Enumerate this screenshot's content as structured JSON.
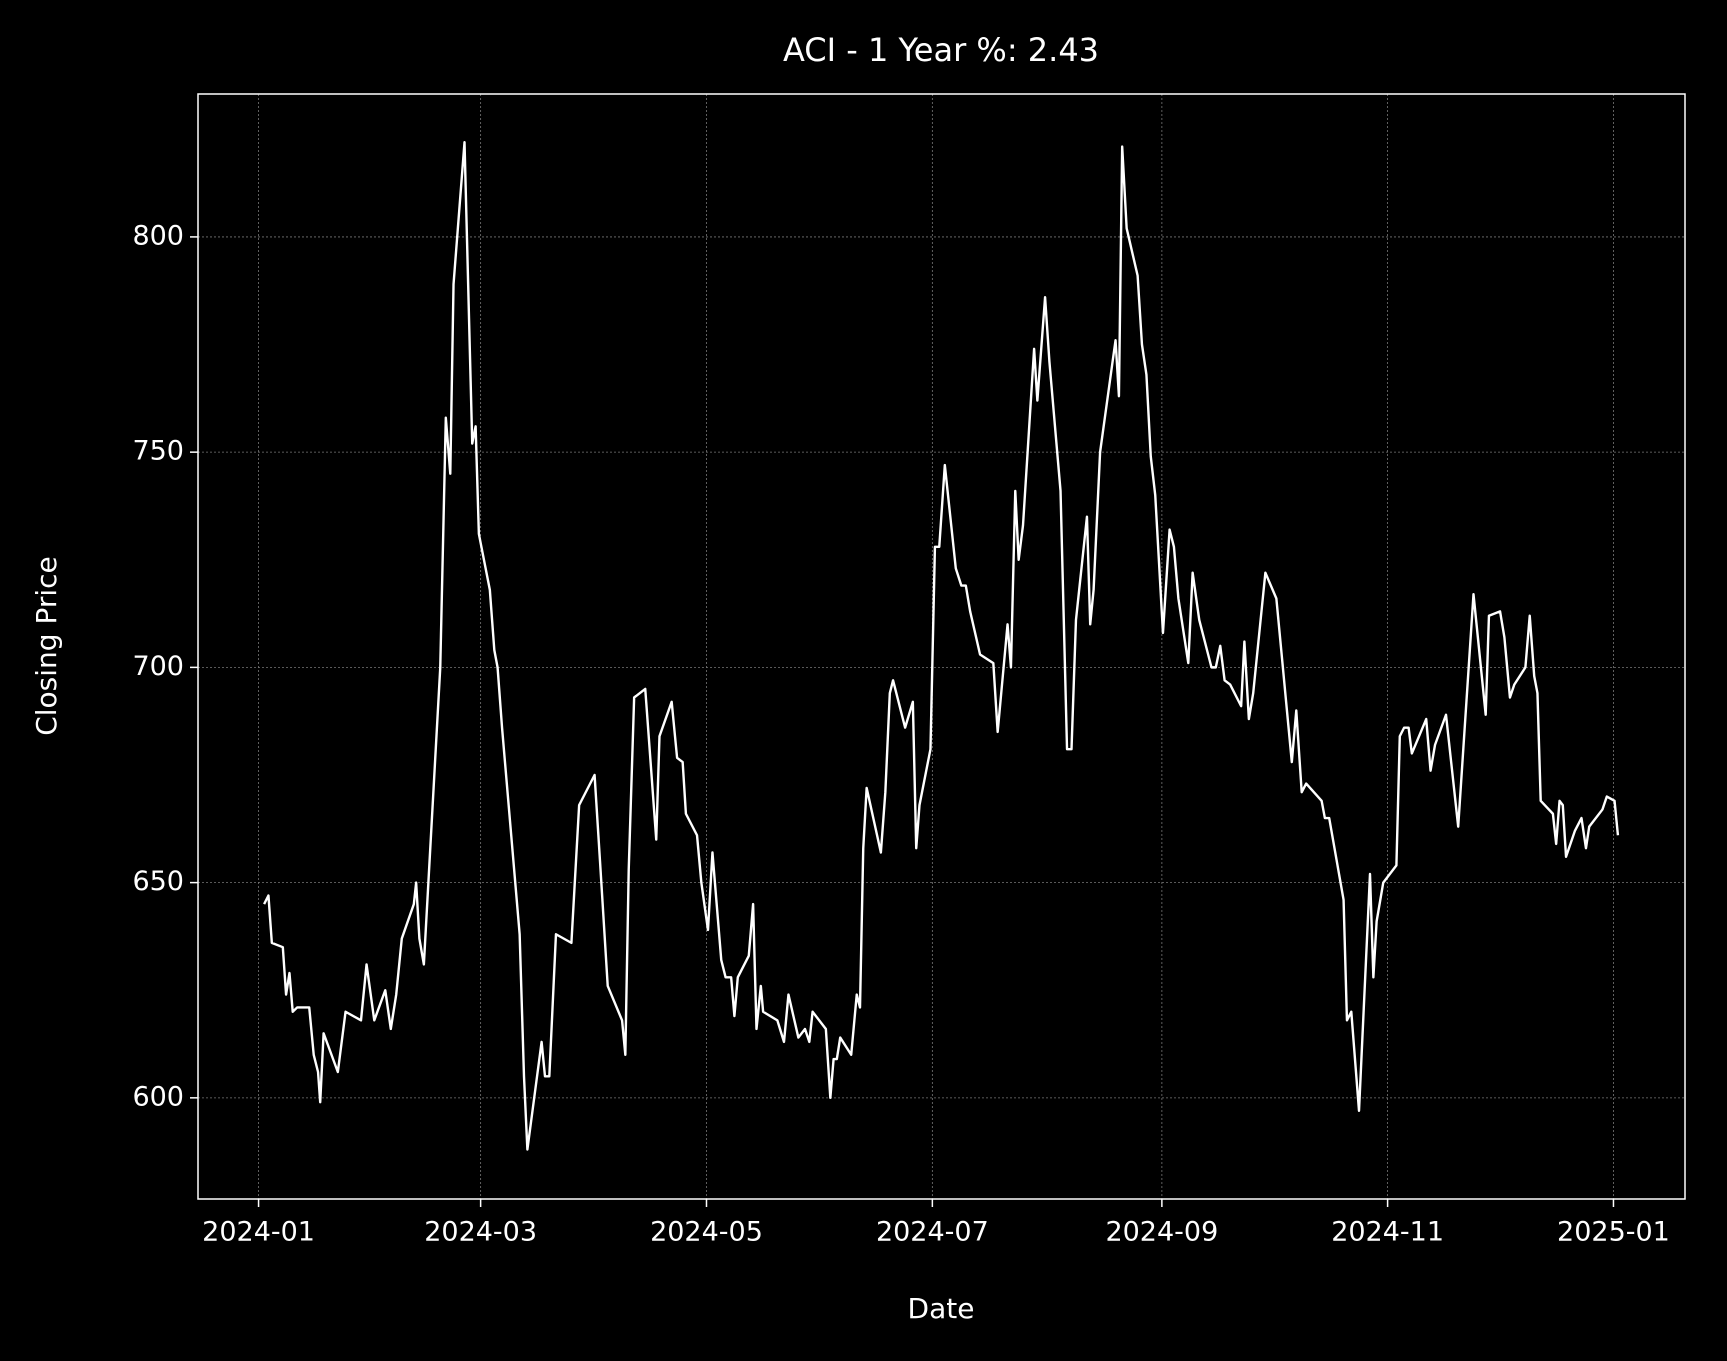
{
  "chart_data": {
    "type": "line",
    "title": "ACI - 1 Year %: 2.43",
    "xlabel": "Date",
    "ylabel": "Closing Price",
    "color": "#ffffff",
    "grid": true,
    "xlim": [
      2023.9553,
      2025.0528
    ],
    "ylim": [
      576.5,
      833.2
    ],
    "xticks": [
      {
        "value": 2024.0,
        "label": "2024-01"
      },
      {
        "value": 2024.1639,
        "label": "2024-03"
      },
      {
        "value": 2024.3306,
        "label": "2024-05"
      },
      {
        "value": 2024.4973,
        "label": "2024-07"
      },
      {
        "value": 2024.6667,
        "label": "2024-09"
      },
      {
        "value": 2024.8333,
        "label": "2024-11"
      },
      {
        "value": 2025.0,
        "label": "2025-01"
      }
    ],
    "yticks": [
      600,
      650,
      700,
      750,
      800
    ],
    "x": [
      2024.0041,
      2024.0073,
      2024.0098,
      2024.0179,
      2024.0203,
      2024.0228,
      2024.0252,
      2024.0285,
      2024.0374,
      2024.0407,
      2024.0439,
      2024.0455,
      2024.048,
      2024.0585,
      2024.0642,
      2024.0756,
      2024.0797,
      2024.0854,
      2024.0935,
      2024.0976,
      2024.1016,
      2024.1057,
      2024.1146,
      2024.1163,
      2024.1187,
      2024.122,
      2024.1341,
      2024.1382,
      2024.1415,
      2024.1439,
      2024.152,
      2024.1577,
      2024.1602,
      2024.1626,
      2024.1707,
      2024.174,
      2024.1764,
      2024.1797,
      2024.1927,
      2024.1959,
      2024.1984,
      2024.2089,
      2024.2114,
      2024.2146,
      2024.2195,
      2024.2309,
      2024.2366,
      2024.248,
      2024.252,
      2024.2577,
      2024.2683,
      2024.2707,
      2024.2732,
      2024.2772,
      2024.2854,
      2024.2935,
      2024.2959,
      2024.3049,
      2024.3089,
      2024.313,
      2024.3154,
      2024.3236,
      2024.3268,
      2024.3317,
      2024.335,
      2024.3415,
      2024.3447,
      2024.3488,
      2024.3512,
      2024.3537,
      2024.3618,
      2024.365,
      2024.3675,
      2024.3707,
      2024.3724,
      2024.3829,
      2024.3878,
      2024.3911,
      2024.3984,
      2024.4033,
      2024.4065,
      2024.4089,
      2024.4187,
      2024.422,
      2024.4244,
      2024.4268,
      2024.4293,
      2024.4374,
      2024.4415,
      2024.4439,
      2024.4463,
      2024.4488,
      2024.4593,
      2024.4626,
      2024.4659,
      2024.4683,
      2024.4772,
      2024.4829,
      2024.4854,
      2024.4878,
      2024.4959,
      2024.4992,
      2024.5024,
      2024.5065,
      2024.5146,
      2024.5187,
      2024.522,
      2024.5252,
      2024.5325,
      2024.5423,
      2024.5455,
      2024.5528,
      2024.5553,
      2024.5585,
      2024.561,
      2024.5642,
      2024.5724,
      2024.5748,
      2024.5805,
      2024.5837,
      2024.5919,
      2024.5967,
      2024.6,
      2024.6033,
      2024.6114,
      2024.6138,
      2024.6163,
      2024.6211,
      2024.6325,
      2024.635,
      2024.6374,
      2024.6407,
      2024.6488,
      2024.652,
      2024.6553,
      2024.6585,
      2024.6618,
      2024.6675,
      2024.6724,
      2024.6756,
      2024.6789,
      2024.6862,
      2024.6894,
      2024.6943,
      2024.7033,
      2024.7065,
      2024.7098,
      2024.713,
      2024.7171,
      2024.7252,
      2024.7276,
      2024.7309,
      2024.7341,
      2024.7431,
      2024.7512,
      2024.7626,
      2024.7659,
      2024.7699,
      2024.7732,
      2024.7846,
      2024.787,
      2024.7902,
      2024.8008,
      2024.8033,
      2024.8065,
      2024.8122,
      2024.8203,
      2024.8228,
      2024.8252,
      2024.8301,
      2024.8398,
      2024.8423,
      2024.8455,
      2024.8488,
      2024.8512,
      2024.8618,
      2024.865,
      2024.8683,
      2024.8764,
      2024.8854,
      2024.8967,
      2024.9057,
      2024.9081,
      2024.9163,
      2024.9195,
      2024.9236,
      2024.9268,
      2024.935,
      2024.9382,
      2024.9415,
      2024.9439,
      2024.9463,
      2024.9553,
      2024.9577,
      2024.9602,
      2024.9626,
      2024.965,
      2024.9715,
      2024.9764,
      2024.9797,
      2024.9821,
      2024.9919,
      2024.9951,
      2025.0008,
      2025.0033
    ],
    "values": [
      645,
      647,
      636,
      635,
      624,
      629,
      620,
      621,
      621,
      610,
      606,
      599,
      615,
      606,
      620,
      618,
      631,
      618,
      625,
      616,
      624,
      637,
      645,
      650,
      637,
      631,
      700,
      758,
      745,
      789,
      822,
      752,
      756,
      731,
      718,
      704,
      700,
      686,
      638,
      605,
      588,
      613,
      605,
      605,
      638,
      636,
      668,
      675,
      655,
      626,
      618,
      610,
      653,
      693,
      695,
      660,
      684,
      692,
      679,
      678,
      666,
      661,
      650,
      639,
      657,
      632,
      628,
      628,
      619,
      628,
      633,
      645,
      616,
      626,
      620,
      618,
      613,
      624,
      614,
      616,
      613,
      620,
      616,
      600,
      609,
      609,
      614,
      610,
      624,
      621,
      658,
      672,
      657,
      671,
      694,
      697,
      686,
      692,
      658,
      668,
      681,
      728,
      728,
      747,
      723,
      719,
      719,
      713,
      703,
      701,
      685,
      710,
      700,
      741,
      725,
      733,
      774,
      762,
      786,
      771,
      741,
      681,
      681,
      711,
      735,
      710,
      718,
      750,
      776,
      763,
      821,
      802,
      791,
      775,
      768,
      749,
      740,
      708,
      732,
      728,
      716,
      701,
      722,
      711,
      700,
      700,
      705,
      697,
      696,
      691,
      706,
      688,
      694,
      722,
      716,
      678,
      690,
      671,
      673,
      669,
      665,
      665,
      646,
      618,
      620,
      597,
      652,
      628,
      641,
      650,
      654,
      684,
      686,
      686,
      680,
      688,
      676,
      682,
      689,
      663,
      717,
      689,
      712,
      713,
      707,
      693,
      696,
      700,
      712,
      698,
      694,
      669,
      666,
      659,
      669,
      668,
      656,
      662,
      665,
      658,
      663,
      667,
      670,
      669,
      661
    ]
  }
}
